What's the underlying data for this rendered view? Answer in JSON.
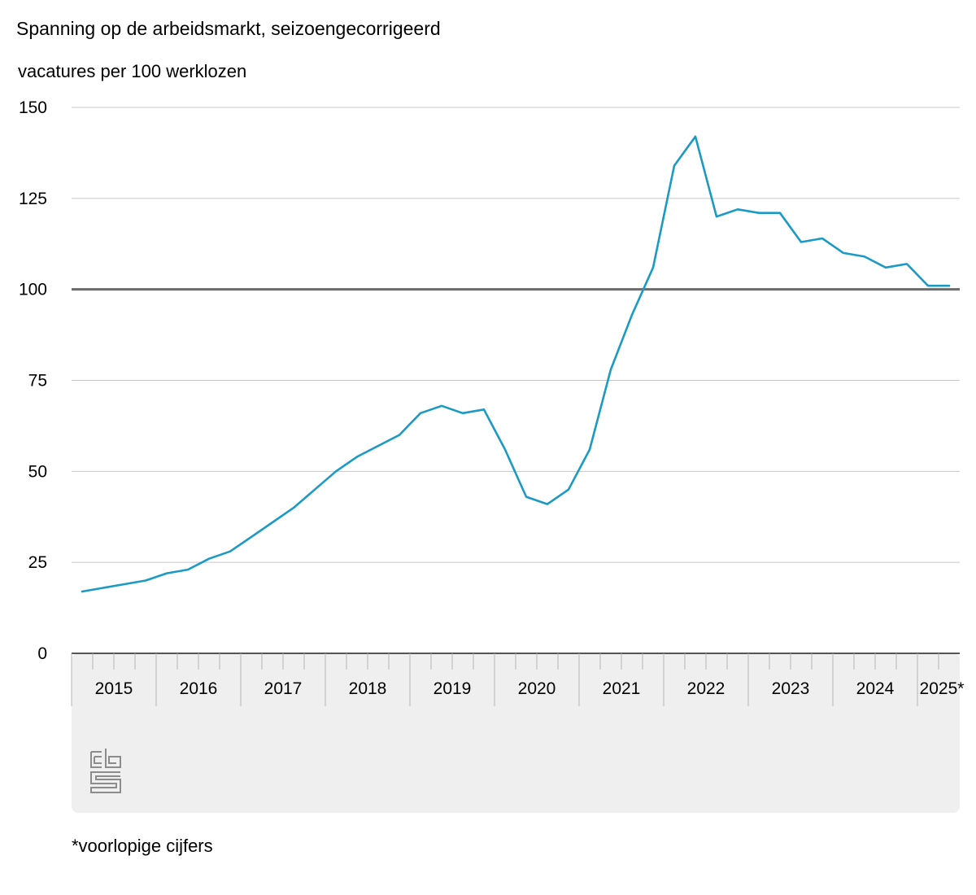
{
  "chart_data": {
    "type": "line",
    "title": "Spanning op de arbeidsmarkt, seizoengecorrigeerd",
    "ylabel": "vacatures per 100 werklozen",
    "xlabel": "",
    "ylim": [
      0,
      150
    ],
    "yticks": [
      "0",
      "25",
      "50",
      "75",
      "100",
      "125",
      "150"
    ],
    "reference_line": 100,
    "grid": true,
    "categories": [
      "2015",
      "2016",
      "2017",
      "2018",
      "2019",
      "2020",
      "2021",
      "2022",
      "2023",
      "2024",
      "2025*"
    ],
    "quarters_per_year": 4,
    "footnote": "*voorlopige cijfers",
    "series": [
      {
        "color": "#1a9ac4",
        "x": [
          "2015 Q1",
          "2015 Q2",
          "2015 Q3",
          "2015 Q4",
          "2016 Q1",
          "2016 Q2",
          "2016 Q3",
          "2016 Q4",
          "2017 Q1",
          "2017 Q2",
          "2017 Q3",
          "2017 Q4",
          "2018 Q1",
          "2018 Q2",
          "2018 Q3",
          "2018 Q4",
          "2019 Q1",
          "2019 Q2",
          "2019 Q3",
          "2019 Q4",
          "2020 Q1",
          "2020 Q2",
          "2020 Q3",
          "2020 Q4",
          "2021 Q1",
          "2021 Q2",
          "2021 Q3",
          "2021 Q4",
          "2022 Q1",
          "2022 Q2",
          "2022 Q3",
          "2022 Q4",
          "2023 Q1",
          "2023 Q2",
          "2023 Q3",
          "2023 Q4",
          "2024 Q1",
          "2024 Q2",
          "2024 Q3",
          "2024 Q4",
          "2025 Q1",
          "2025 Q2"
        ],
        "values": [
          17,
          18,
          19,
          20,
          22,
          23,
          26,
          28,
          32,
          36,
          40,
          45,
          50,
          54,
          57,
          60,
          66,
          68,
          66,
          67,
          56,
          43,
          41,
          45,
          56,
          78,
          93,
          106,
          134,
          142,
          120,
          122,
          121,
          121,
          113,
          114,
          110,
          109,
          106,
          107,
          101,
          101
        ]
      }
    ]
  },
  "colors": {
    "line": "#1a9ac4",
    "reference_line": "#6b6b6b",
    "grid": "#c8c8c8",
    "axis_band": "#efefef",
    "logo": "#8c8c8c"
  },
  "logo": {
    "icon": "cbs-logo-icon"
  }
}
